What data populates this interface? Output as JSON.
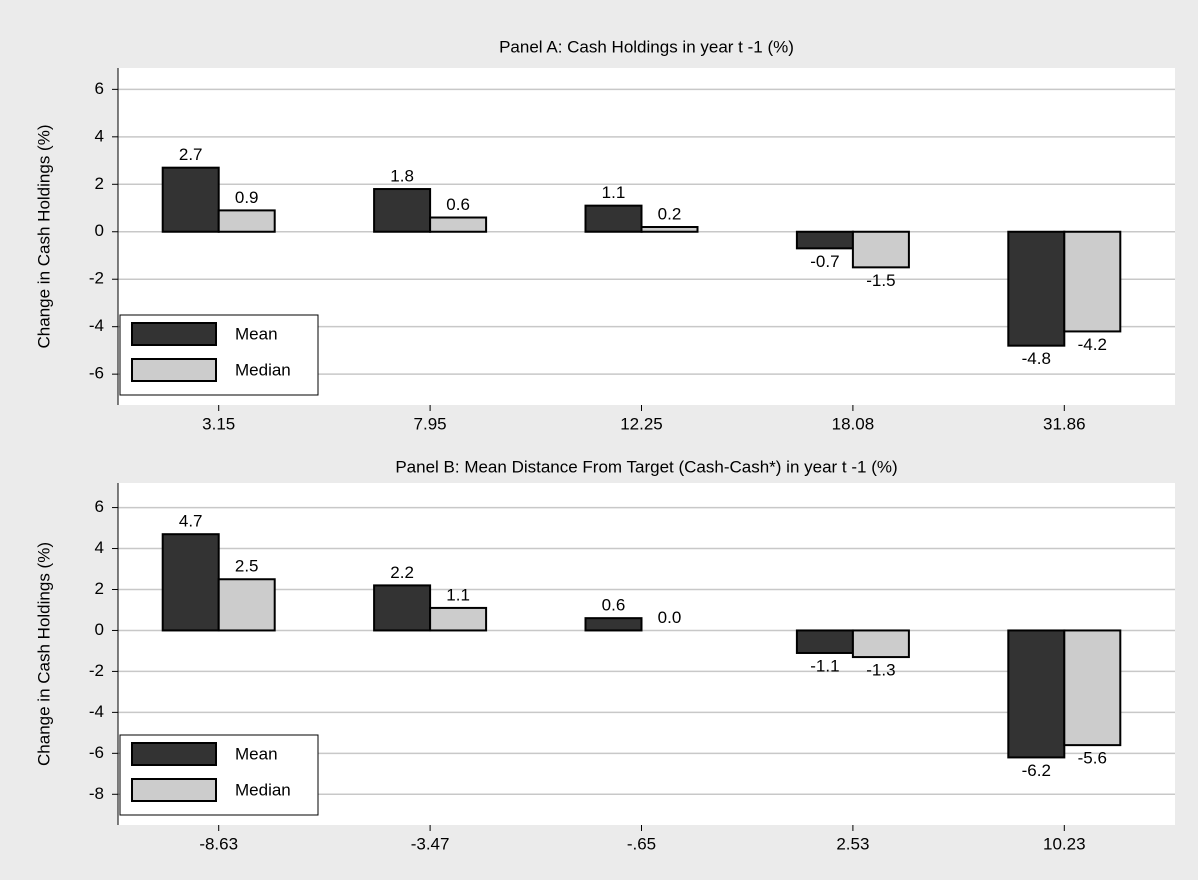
{
  "chart_data": [
    {
      "type": "bar",
      "title": "Panel A: Cash Holdings in year t -1 (%)",
      "y_label": "Change in Cash Holdings (%)",
      "categories": [
        "3.15",
        "7.95",
        "12.25",
        "18.08",
        "31.86"
      ],
      "series": [
        {
          "name": "Mean",
          "color": "#333333",
          "values": [
            2.7,
            1.8,
            1.1,
            -0.7,
            -4.8
          ],
          "value_labels": [
            "2.7",
            "1.8",
            "1.1",
            "-0.7",
            "-4.8"
          ]
        },
        {
          "name": "Median",
          "color": "#cccccc",
          "values": [
            0.9,
            0.6,
            0.2,
            -1.5,
            -4.2
          ],
          "value_labels": [
            "0.9",
            "0.6",
            "0.2",
            "-1.5",
            "-4.2"
          ]
        }
      ],
      "ylim": [
        -7.3,
        6.9
      ],
      "yticks": [
        -6,
        -4,
        -2,
        0,
        2,
        4,
        6
      ],
      "grid": true,
      "legend": "lower left"
    },
    {
      "type": "bar",
      "title": "Panel B: Mean Distance From Target (Cash-Cash*) in year t -1 (%)",
      "y_label": "Change in Cash Holdings (%)",
      "categories": [
        "-8.63",
        "-3.47",
        "-.65",
        "2.53",
        "10.23"
      ],
      "series": [
        {
          "name": "Mean",
          "color": "#333333",
          "values": [
            4.7,
            2.2,
            0.6,
            -1.1,
            -6.2
          ],
          "value_labels": [
            "4.7",
            "2.2",
            "0.6",
            "-1.1",
            "-6.2"
          ]
        },
        {
          "name": "Median",
          "color": "#cccccc",
          "values": [
            2.5,
            1.1,
            0.0,
            -1.3,
            -5.6
          ],
          "value_labels": [
            "2.5",
            "1.1",
            "0.0",
            "-1.3",
            "-5.6"
          ]
        }
      ],
      "ylim": [
        -9.5,
        7.2
      ],
      "yticks": [
        -8,
        -6,
        -4,
        -2,
        0,
        2,
        4,
        6
      ],
      "grid": true,
      "legend": "lower left"
    }
  ]
}
